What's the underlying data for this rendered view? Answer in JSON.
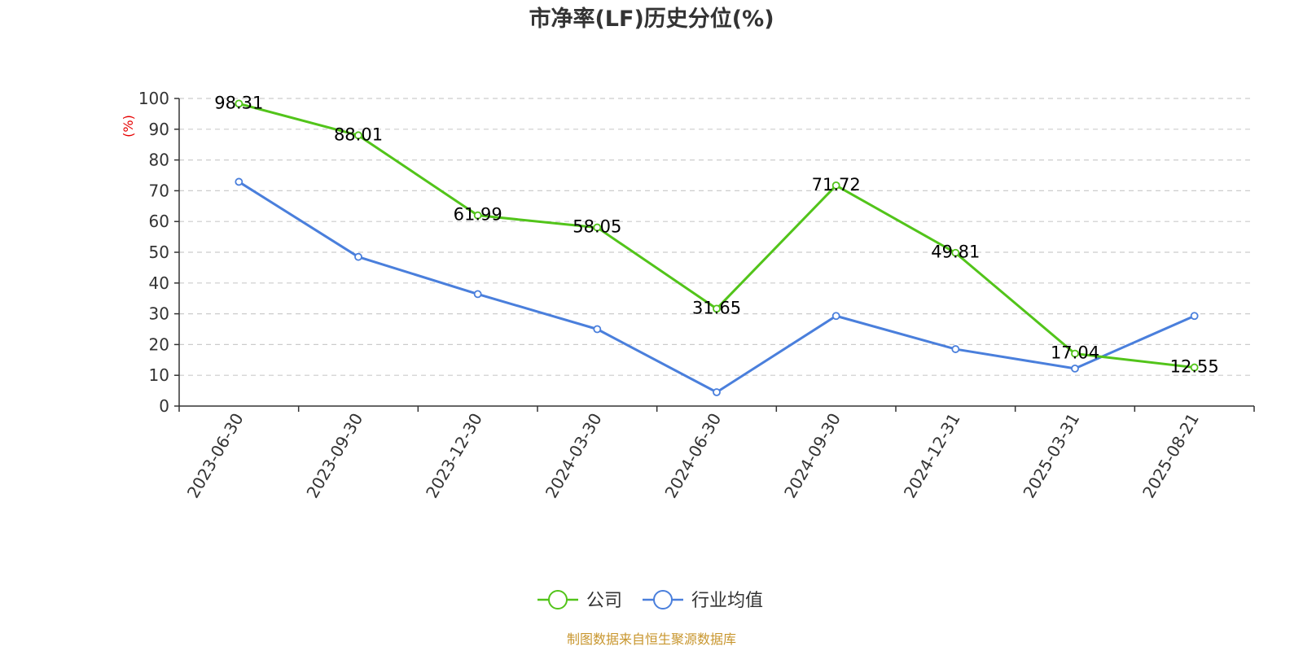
{
  "chart_data": {
    "type": "line",
    "title": "市净率(LF)历史分位(%)",
    "ylabel": "(%)",
    "ylim": [
      0,
      100
    ],
    "yticks": [
      0,
      10,
      20,
      30,
      40,
      50,
      60,
      70,
      80,
      90,
      100
    ],
    "categories": [
      "2023-06-30",
      "2023-09-30",
      "2023-12-30",
      "2024-03-30",
      "2024-06-30",
      "2024-09-30",
      "2024-12-31",
      "2025-03-31",
      "2025-08-21"
    ],
    "series": [
      {
        "name": "公司",
        "color": "#52c41a",
        "values": [
          98.31,
          88.01,
          61.99,
          58.05,
          31.65,
          71.72,
          49.81,
          17.04,
          12.55
        ],
        "labels": [
          "98.31",
          "88.01",
          "61.99",
          "58.05",
          "31.65",
          "71.72",
          "49.81",
          "17.04",
          "12.55"
        ]
      },
      {
        "name": "行业均值",
        "color": "#4a7fdc",
        "values": [
          72.9,
          48.5,
          36.4,
          25.0,
          4.5,
          29.3,
          18.5,
          12.2,
          29.3
        ]
      }
    ],
    "grid": true,
    "grid_style": "dashed-horizontal",
    "legend_position": "bottom-center",
    "ylabel_color": "#e60000"
  },
  "source_note": "制图数据来自恒生聚源数据库",
  "source_color": "#c8962e"
}
